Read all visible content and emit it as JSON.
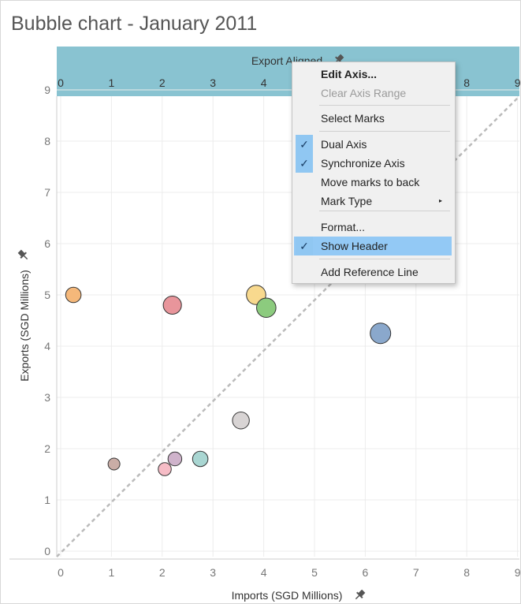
{
  "title": "Bubble chart - January 2011",
  "chart_data": {
    "type": "scatter",
    "subtype": "bubble",
    "title": "Bubble chart - January 2011",
    "xlabel": "Imports (SGD Millions)",
    "ylabel": "Exports (SGD Millions)",
    "top_axis_label": "Export Aligned",
    "xlim": [
      0,
      9
    ],
    "ylim": [
      0,
      9
    ],
    "x_ticks": [
      "0",
      "1",
      "2",
      "3",
      "4",
      "5",
      "6",
      "7",
      "8",
      "9"
    ],
    "y_ticks": [
      "0",
      "1",
      "2",
      "3",
      "4",
      "5",
      "6",
      "7",
      "8",
      "9"
    ],
    "grid": true,
    "reference_line": "y = x (dashed)",
    "points": [
      {
        "x": 0.25,
        "y": 5.0,
        "size": 2,
        "color": "#f5b87a"
      },
      {
        "x": 2.2,
        "y": 4.8,
        "size": 3,
        "color": "#e8959b"
      },
      {
        "x": 3.85,
        "y": 5.0,
        "size": 3.5,
        "color": "#f8d98e"
      },
      {
        "x": 4.05,
        "y": 4.75,
        "size": 3.5,
        "color": "#8ccb7e"
      },
      {
        "x": 6.3,
        "y": 4.25,
        "size": 4,
        "color": "#8aa8cc"
      },
      {
        "x": 3.55,
        "y": 2.55,
        "size": 2.5,
        "color": "#d8d4d4"
      },
      {
        "x": 1.05,
        "y": 1.7,
        "size": 1,
        "color": "#c9ada6"
      },
      {
        "x": 2.25,
        "y": 1.8,
        "size": 1.5,
        "color": "#cfb3cb"
      },
      {
        "x": 2.75,
        "y": 1.8,
        "size": 2,
        "color": "#a9d6d2"
      },
      {
        "x": 2.05,
        "y": 1.6,
        "size": 1.3,
        "color": "#f6bcc6"
      }
    ]
  },
  "colors": {
    "top_header_bg": "#89c3d1",
    "grid": "#ececec",
    "reference_line": "#bbbbbb"
  },
  "context_menu": {
    "items": [
      {
        "label": "Edit Axis...",
        "bold": true,
        "disabled": false,
        "checked": false,
        "highlight": false,
        "submenu": false
      },
      {
        "label": "Clear Axis Range",
        "bold": false,
        "disabled": true,
        "checked": false,
        "highlight": false,
        "submenu": false
      },
      {
        "label": "Select Marks",
        "bold": false,
        "disabled": false,
        "checked": false,
        "highlight": false,
        "submenu": false
      },
      {
        "label": "Dual Axis",
        "bold": false,
        "disabled": false,
        "checked": true,
        "highlight": false,
        "submenu": false
      },
      {
        "label": "Synchronize Axis",
        "bold": false,
        "disabled": false,
        "checked": true,
        "highlight": false,
        "submenu": false
      },
      {
        "label": "Move marks to back",
        "bold": false,
        "disabled": false,
        "checked": false,
        "highlight": false,
        "submenu": false
      },
      {
        "label": "Mark Type",
        "bold": false,
        "disabled": false,
        "checked": false,
        "highlight": false,
        "submenu": true
      },
      {
        "label": "Format...",
        "bold": false,
        "disabled": false,
        "checked": false,
        "highlight": false,
        "submenu": false
      },
      {
        "label": "Show Header",
        "bold": false,
        "disabled": false,
        "checked": true,
        "highlight": true,
        "submenu": false
      },
      {
        "label": "Add Reference Line",
        "bold": false,
        "disabled": false,
        "checked": false,
        "highlight": false,
        "submenu": false
      }
    ],
    "check_glyph": "✓",
    "submenu_glyph": "▸"
  },
  "icons": {
    "pin": "pin-icon",
    "check": "checkmark-icon",
    "submenu": "submenu-arrow-icon"
  }
}
